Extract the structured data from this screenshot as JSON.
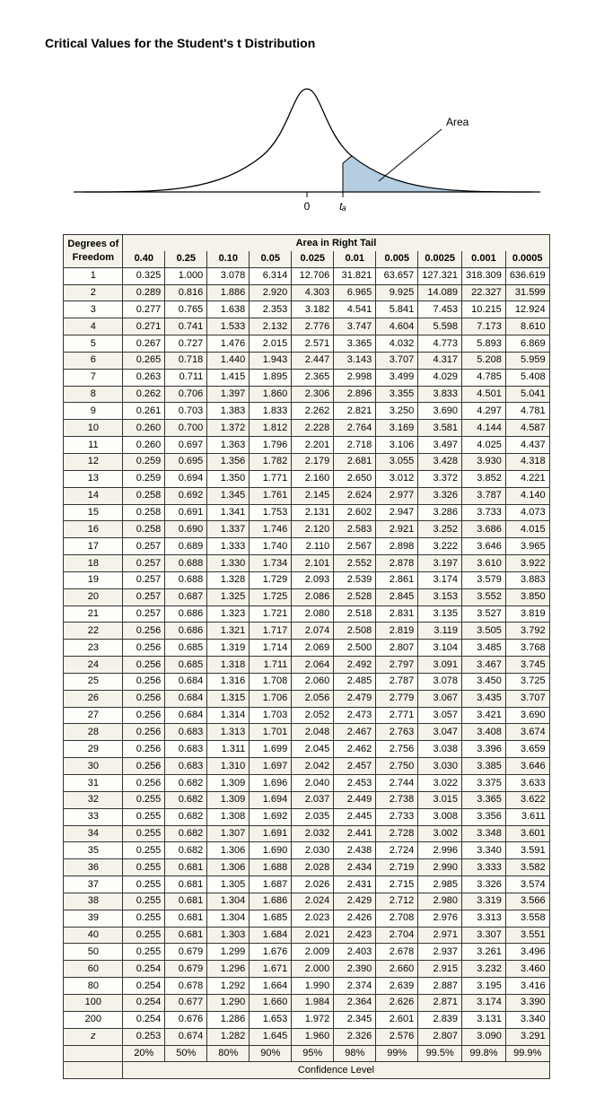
{
  "title": "Critical Values for the Student's t Distribution",
  "area_label": "Area",
  "axis0": "0",
  "axis_ta": "tₐ",
  "header_df": "Degrees of",
  "header_freedom": "Freedom",
  "header_area": "Area in Right Tail",
  "alphas": [
    "0.40",
    "0.25",
    "0.10",
    "0.05",
    "0.025",
    "0.01",
    "0.005",
    "0.0025",
    "0.001",
    "0.0005"
  ],
  "df_labels": [
    "1",
    "2",
    "3",
    "4",
    "5",
    "6",
    "7",
    "8",
    "9",
    "10",
    "11",
    "12",
    "13",
    "14",
    "15",
    "16",
    "17",
    "18",
    "19",
    "20",
    "21",
    "22",
    "23",
    "24",
    "25",
    "26",
    "27",
    "28",
    "29",
    "30",
    "31",
    "32",
    "33",
    "34",
    "35",
    "36",
    "37",
    "38",
    "39",
    "40",
    "50",
    "60",
    "80",
    "100",
    "200",
    "z"
  ],
  "rows": [
    [
      "0.325",
      "1.000",
      "3.078",
      "6.314",
      "12.706",
      "31.821",
      "63.657",
      "127.321",
      "318.309",
      "636.619"
    ],
    [
      "0.289",
      "0.816",
      "1.886",
      "2.920",
      "4.303",
      "6.965",
      "9.925",
      "14.089",
      "22.327",
      "31.599"
    ],
    [
      "0.277",
      "0.765",
      "1.638",
      "2.353",
      "3.182",
      "4.541",
      "5.841",
      "7.453",
      "10.215",
      "12.924"
    ],
    [
      "0.271",
      "0.741",
      "1.533",
      "2.132",
      "2.776",
      "3.747",
      "4.604",
      "5.598",
      "7.173",
      "8.610"
    ],
    [
      "0.267",
      "0.727",
      "1.476",
      "2.015",
      "2.571",
      "3.365",
      "4.032",
      "4.773",
      "5.893",
      "6.869"
    ],
    [
      "0.265",
      "0.718",
      "1.440",
      "1.943",
      "2.447",
      "3.143",
      "3.707",
      "4.317",
      "5.208",
      "5.959"
    ],
    [
      "0.263",
      "0.711",
      "1.415",
      "1.895",
      "2.365",
      "2.998",
      "3.499",
      "4.029",
      "4.785",
      "5.408"
    ],
    [
      "0.262",
      "0.706",
      "1.397",
      "1.860",
      "2.306",
      "2.896",
      "3.355",
      "3.833",
      "4.501",
      "5.041"
    ],
    [
      "0.261",
      "0.703",
      "1.383",
      "1.833",
      "2.262",
      "2.821",
      "3.250",
      "3.690",
      "4.297",
      "4.781"
    ],
    [
      "0.260",
      "0.700",
      "1.372",
      "1.812",
      "2.228",
      "2.764",
      "3.169",
      "3.581",
      "4.144",
      "4.587"
    ],
    [
      "0.260",
      "0.697",
      "1.363",
      "1.796",
      "2.201",
      "2.718",
      "3.106",
      "3.497",
      "4.025",
      "4.437"
    ],
    [
      "0.259",
      "0.695",
      "1.356",
      "1.782",
      "2.179",
      "2.681",
      "3.055",
      "3.428",
      "3.930",
      "4.318"
    ],
    [
      "0.259",
      "0.694",
      "1.350",
      "1.771",
      "2.160",
      "2.650",
      "3.012",
      "3.372",
      "3.852",
      "4.221"
    ],
    [
      "0.258",
      "0.692",
      "1.345",
      "1.761",
      "2.145",
      "2.624",
      "2.977",
      "3.326",
      "3.787",
      "4.140"
    ],
    [
      "0.258",
      "0.691",
      "1.341",
      "1.753",
      "2.131",
      "2.602",
      "2.947",
      "3.286",
      "3.733",
      "4.073"
    ],
    [
      "0.258",
      "0.690",
      "1.337",
      "1.746",
      "2.120",
      "2.583",
      "2.921",
      "3.252",
      "3.686",
      "4.015"
    ],
    [
      "0.257",
      "0.689",
      "1.333",
      "1.740",
      "2.110",
      "2.567",
      "2.898",
      "3.222",
      "3.646",
      "3.965"
    ],
    [
      "0.257",
      "0.688",
      "1.330",
      "1.734",
      "2.101",
      "2.552",
      "2.878",
      "3.197",
      "3.610",
      "3.922"
    ],
    [
      "0.257",
      "0.688",
      "1.328",
      "1.729",
      "2.093",
      "2.539",
      "2.861",
      "3.174",
      "3.579",
      "3.883"
    ],
    [
      "0.257",
      "0.687",
      "1.325",
      "1.725",
      "2.086",
      "2.528",
      "2.845",
      "3.153",
      "3.552",
      "3.850"
    ],
    [
      "0.257",
      "0.686",
      "1.323",
      "1.721",
      "2.080",
      "2.518",
      "2.831",
      "3.135",
      "3.527",
      "3.819"
    ],
    [
      "0.256",
      "0.686",
      "1.321",
      "1.717",
      "2.074",
      "2.508",
      "2.819",
      "3.119",
      "3.505",
      "3.792"
    ],
    [
      "0.256",
      "0.685",
      "1.319",
      "1.714",
      "2.069",
      "2.500",
      "2.807",
      "3.104",
      "3.485",
      "3.768"
    ],
    [
      "0.256",
      "0.685",
      "1.318",
      "1.711",
      "2.064",
      "2.492",
      "2.797",
      "3.091",
      "3.467",
      "3.745"
    ],
    [
      "0.256",
      "0.684",
      "1.316",
      "1.708",
      "2.060",
      "2.485",
      "2.787",
      "3.078",
      "3.450",
      "3.725"
    ],
    [
      "0.256",
      "0.684",
      "1.315",
      "1.706",
      "2.056",
      "2.479",
      "2.779",
      "3.067",
      "3.435",
      "3.707"
    ],
    [
      "0.256",
      "0.684",
      "1.314",
      "1.703",
      "2.052",
      "2.473",
      "2.771",
      "3.057",
      "3.421",
      "3.690"
    ],
    [
      "0.256",
      "0.683",
      "1.313",
      "1.701",
      "2.048",
      "2.467",
      "2.763",
      "3.047",
      "3.408",
      "3.674"
    ],
    [
      "0.256",
      "0.683",
      "1.311",
      "1.699",
      "2.045",
      "2.462",
      "2.756",
      "3.038",
      "3.396",
      "3.659"
    ],
    [
      "0.256",
      "0.683",
      "1.310",
      "1.697",
      "2.042",
      "2.457",
      "2.750",
      "3.030",
      "3.385",
      "3.646"
    ],
    [
      "0.256",
      "0.682",
      "1.309",
      "1.696",
      "2.040",
      "2.453",
      "2.744",
      "3.022",
      "3.375",
      "3.633"
    ],
    [
      "0.255",
      "0.682",
      "1.309",
      "1.694",
      "2.037",
      "2.449",
      "2.738",
      "3.015",
      "3.365",
      "3.622"
    ],
    [
      "0.255",
      "0.682",
      "1.308",
      "1.692",
      "2.035",
      "2.445",
      "2.733",
      "3.008",
      "3.356",
      "3.611"
    ],
    [
      "0.255",
      "0.682",
      "1.307",
      "1.691",
      "2.032",
      "2.441",
      "2.728",
      "3.002",
      "3.348",
      "3.601"
    ],
    [
      "0.255",
      "0.682",
      "1.306",
      "1.690",
      "2.030",
      "2.438",
      "2.724",
      "2.996",
      "3.340",
      "3.591"
    ],
    [
      "0.255",
      "0.681",
      "1.306",
      "1.688",
      "2.028",
      "2.434",
      "2.719",
      "2.990",
      "3.333",
      "3.582"
    ],
    [
      "0.255",
      "0.681",
      "1.305",
      "1.687",
      "2.026",
      "2.431",
      "2.715",
      "2.985",
      "3.326",
      "3.574"
    ],
    [
      "0.255",
      "0.681",
      "1.304",
      "1.686",
      "2.024",
      "2.429",
      "2.712",
      "2.980",
      "3.319",
      "3.566"
    ],
    [
      "0.255",
      "0.681",
      "1.304",
      "1.685",
      "2.023",
      "2.426",
      "2.708",
      "2.976",
      "3.313",
      "3.558"
    ],
    [
      "0.255",
      "0.681",
      "1.303",
      "1.684",
      "2.021",
      "2.423",
      "2.704",
      "2.971",
      "3.307",
      "3.551"
    ],
    [
      "0.255",
      "0.679",
      "1.299",
      "1.676",
      "2.009",
      "2.403",
      "2.678",
      "2.937",
      "3.261",
      "3.496"
    ],
    [
      "0.254",
      "0.679",
      "1.296",
      "1.671",
      "2.000",
      "2.390",
      "2.660",
      "2.915",
      "3.232",
      "3.460"
    ],
    [
      "0.254",
      "0.678",
      "1.292",
      "1.664",
      "1.990",
      "2.374",
      "2.639",
      "2.887",
      "3.195",
      "3.416"
    ],
    [
      "0.254",
      "0.677",
      "1.290",
      "1.660",
      "1.984",
      "2.364",
      "2.626",
      "2.871",
      "3.174",
      "3.390"
    ],
    [
      "0.254",
      "0.676",
      "1.286",
      "1.653",
      "1.972",
      "2.345",
      "2.601",
      "2.839",
      "3.131",
      "3.340"
    ],
    [
      "0.253",
      "0.674",
      "1.282",
      "1.645",
      "1.960",
      "2.326",
      "2.576",
      "2.807",
      "3.090",
      "3.291"
    ]
  ],
  "conf_levels": [
    "20%",
    "50%",
    "80%",
    "90%",
    "95%",
    "98%",
    "99%",
    "99.5%",
    "99.8%",
    "99.9%"
  ],
  "conf_label": "Confidence Level",
  "curve": {
    "stroke": "#000000",
    "fill": "#b4cde0",
    "bg": "#ffffff"
  }
}
